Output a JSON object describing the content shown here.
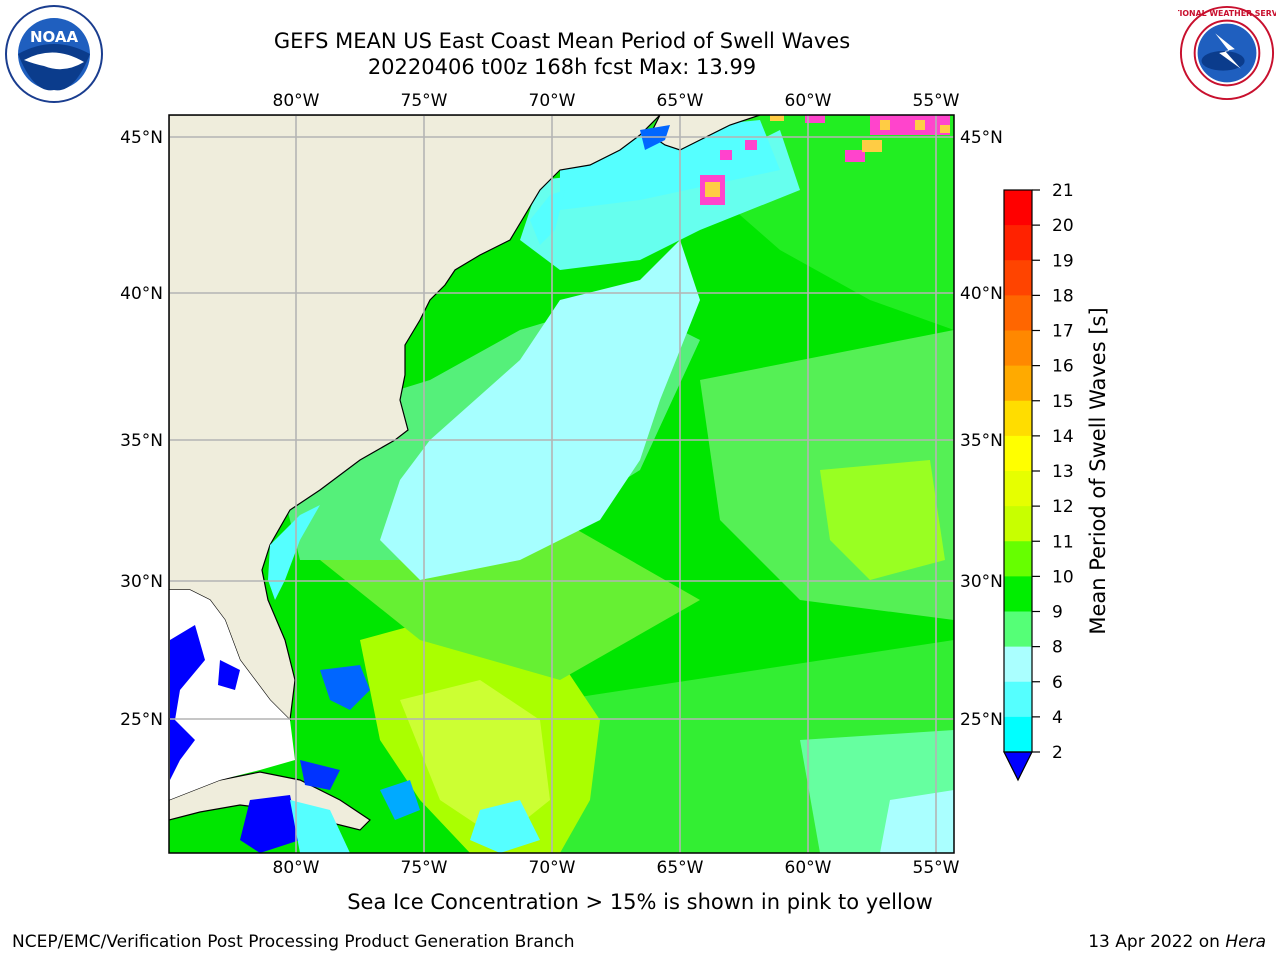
{
  "title": {
    "line1": "GEFS MEAN US East Coast Mean Period of Swell Waves",
    "line2": "20220406 t00z 168h fcst   Max: 13.99"
  },
  "logos": {
    "left": {
      "icon": "noaa-logo",
      "text": "NOAA"
    },
    "right": {
      "icon": "national-weather-service-logo",
      "text": "NATIONAL WEATHER SERVICE"
    }
  },
  "map": {
    "lon_labels": [
      "80°W",
      "75°W",
      "70°W",
      "65°W",
      "60°W",
      "55°W"
    ],
    "lat_labels": [
      "45°N",
      "40°N",
      "35°N",
      "30°N",
      "25°N"
    ],
    "land_color": "#efeddc",
    "grid_color": "#b4b4b4"
  },
  "colorbar": {
    "label": "Mean Period of Swell Waves [s]",
    "ticks": [
      "21",
      "20",
      "19",
      "18",
      "17",
      "16",
      "15",
      "14",
      "13",
      "12",
      "11",
      "10",
      "9",
      "8",
      "6",
      "4",
      "2"
    ],
    "colors": [
      "#ff0000",
      "#ff2200",
      "#ff4400",
      "#ff6600",
      "#ff8800",
      "#ffaa00",
      "#ffdd00",
      "#ffff00",
      "#e6ff00",
      "#c8ff00",
      "#66ff00",
      "#00ee00",
      "#55ff77",
      "#aaffff",
      "#55ffff",
      "#00ffff",
      "#00aaff",
      "#0066ff",
      "#0000ff"
    ]
  },
  "ice_note": "Sea Ice Concentration > 15% is shown in pink to yellow",
  "footer": {
    "left": "NCEP/EMC/Verification Post Processing Product Generation Branch",
    "right_date": "13 Apr 2022 on ",
    "right_host": "Hera"
  }
}
